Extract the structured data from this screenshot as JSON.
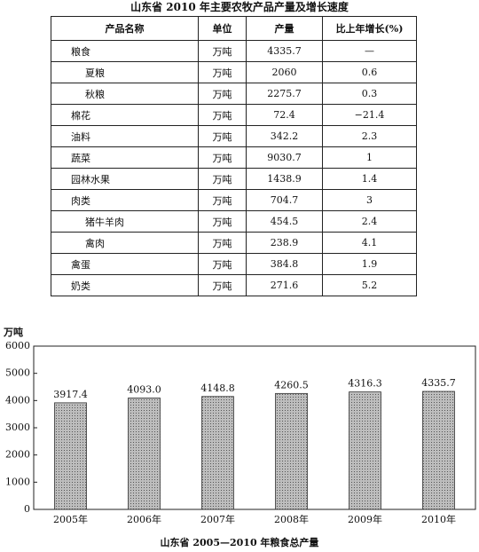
{
  "table": {
    "title": "山东省 2010 年主要农牧产品产量及增长速度",
    "headers": [
      "产品名称",
      "单位",
      "产量",
      "比上年增长(%)"
    ],
    "rows": [
      [
        "粮食",
        "万吨",
        "4335.7",
        "—"
      ],
      [
        "夏粮",
        "万吨",
        "2060",
        "0.6"
      ],
      [
        "秋粮",
        "万吨",
        "2275.7",
        "0.3"
      ],
      [
        "棉花",
        "万吨",
        "72.4",
        "−21.4"
      ],
      [
        "油料",
        "万吨",
        "342.2",
        "2.3"
      ],
      [
        "蔬菜",
        "万吨",
        "9030.7",
        "1"
      ],
      [
        "园林水果",
        "万吨",
        "1438.9",
        "1.4"
      ],
      [
        "肉类",
        "万吨",
        "704.7",
        "3"
      ],
      [
        "猪牛羊肉",
        "万吨",
        "454.5",
        "2.4"
      ],
      [
        "禽肉",
        "万吨",
        "238.9",
        "4.1"
      ],
      [
        "禽蛋",
        "万吨",
        "384.8",
        "1.9"
      ],
      [
        "奶类",
        "万吨",
        "271.6",
        "5.2"
      ]
    ]
  },
  "chart_data": {
    "type": "bar",
    "title": "山东省 2005—2010 年粮食总产量",
    "y_label": "万吨",
    "categories": [
      "2005年",
      "2006年",
      "2007年",
      "2008年",
      "2009年",
      "2010年"
    ],
    "values": [
      3917.4,
      4093.0,
      4148.8,
      4260.5,
      4316.3,
      4335.7
    ],
    "value_labels": [
      "3917.4",
      "4093.0",
      "4148.8",
      "4260.5",
      "4316.3",
      "4335.7"
    ],
    "ylim": [
      0,
      6000
    ],
    "yticks": [
      0,
      1000,
      2000,
      3000,
      4000,
      5000,
      6000
    ],
    "grid": false
  }
}
